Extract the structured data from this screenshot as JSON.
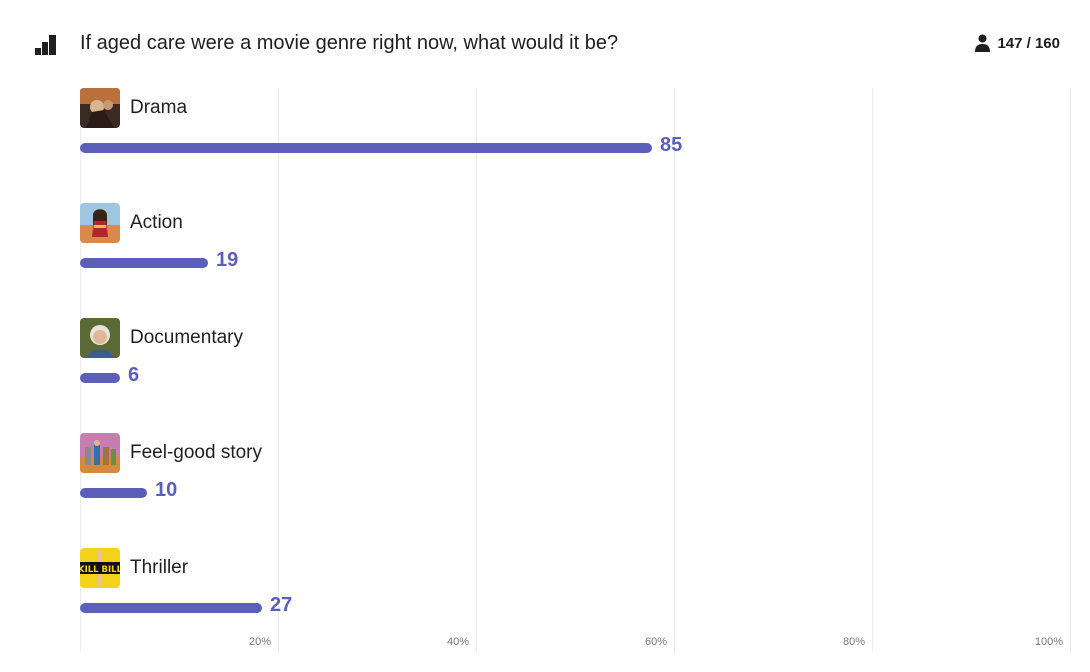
{
  "header": {
    "question": "If aged care were a movie genre right now, what would it be?",
    "response_count": "147 / 160",
    "poll_icon": "bar-chart-icon",
    "respondent_icon": "person-icon"
  },
  "colors": {
    "bar": "#5b5fba",
    "gridline": "#ebebee",
    "text": "#1f1f23"
  },
  "chart_data": {
    "type": "bar",
    "orientation": "horizontal",
    "categories": [
      "Drama",
      "Action",
      "Documentary",
      "Feel-good story",
      "Thriller"
    ],
    "values": [
      85,
      19,
      6,
      10,
      27
    ],
    "value_labels": [
      "85",
      "19",
      "6",
      "10",
      "27"
    ],
    "total_responses": 147,
    "xlim": [
      0,
      100
    ],
    "x_unit": "percent",
    "x_ticks": [
      "20%",
      "40%",
      "60%",
      "80%",
      "100%"
    ],
    "grid": true,
    "thumbnails": [
      "drama-poster-thumbnail",
      "action-poster-thumbnail",
      "documentary-portrait-thumbnail",
      "feel-good-poster-thumbnail",
      "thriller-poster-thumbnail"
    ]
  }
}
